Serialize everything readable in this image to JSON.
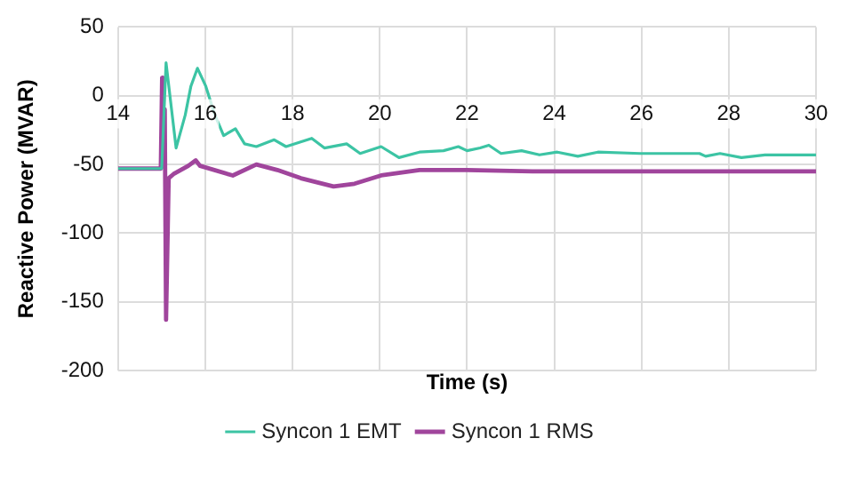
{
  "chart_data": {
    "type": "line",
    "xlabel": "Time (s)",
    "ylabel": "Reactive Power (MVAR)",
    "xlim": [
      14,
      30
    ],
    "xticks": [
      14,
      16,
      18,
      20,
      22,
      24,
      26,
      28,
      30
    ],
    "ylim": [
      -200,
      50
    ],
    "yticks": [
      -200,
      -150,
      -100,
      -50,
      0,
      50
    ],
    "grid": true,
    "legend": "bottom",
    "marker": "none",
    "line_style": "solid",
    "series": [
      {
        "name": "Syncon 1 EMT",
        "color": "#3cc4a4",
        "x": [
          14,
          15.0,
          15.1,
          15.33,
          15.54,
          15.67,
          15.82,
          16.01,
          16.22,
          16.42,
          16.69,
          16.9,
          17.17,
          17.58,
          17.85,
          18.44,
          18.73,
          19.24,
          19.55,
          20.03,
          20.44,
          20.91,
          21.46,
          21.8,
          22.0,
          22.3,
          22.5,
          22.78,
          23.25,
          23.66,
          24.07,
          24.54,
          25.0,
          25.97,
          27.33,
          27.47,
          27.8,
          28.29,
          28.83,
          30
        ],
        "values": [
          -53,
          -53,
          24,
          -38,
          -14,
          7,
          20,
          7,
          -14,
          -29,
          -24,
          -35,
          -37,
          -32,
          -37,
          -31,
          -38,
          -35,
          -42,
          -37,
          -45,
          -41,
          -40,
          -37,
          -40,
          -38,
          -36,
          -42,
          -40,
          -43,
          -41,
          -44,
          -41,
          -42,
          -42,
          -44,
          -42,
          -45,
          -43,
          -43
        ]
      },
      {
        "name": "Syncon 1 RMS",
        "color": "#a0459c",
        "x": [
          14,
          14.98,
          15.01,
          15.03,
          15.07,
          15.1,
          15.16,
          15.27,
          15.61,
          15.78,
          15.88,
          16.63,
          17.17,
          17.65,
          18.19,
          18.94,
          19.42,
          20.03,
          20.91,
          22.0,
          23.5,
          30
        ],
        "values": [
          -53,
          -53,
          13,
          -10,
          -10,
          -163,
          -60,
          -57,
          -51,
          -47,
          -51,
          -58,
          -50,
          -54,
          -60,
          -66,
          -64,
          -58,
          -54,
          -54,
          -55,
          -55
        ]
      }
    ]
  }
}
